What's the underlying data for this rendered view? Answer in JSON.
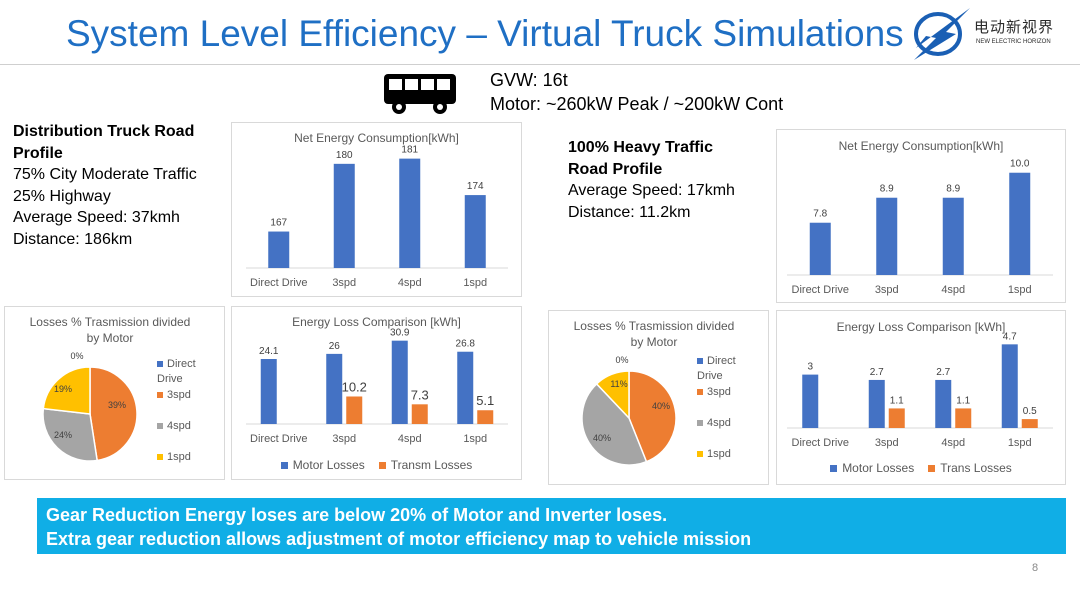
{
  "title": "System Level Efficiency – Virtual Truck Simulations",
  "logo": {
    "cn": "电动新视界",
    "en": "NEW ELECTRIC HORIZON",
    "icon": "lightning-globe-logo"
  },
  "vehicle": {
    "icon": "bus-icon",
    "gvw": "GVW: 16t",
    "motor": "Motor: ~260kW Peak / ~200kW Cont"
  },
  "profile_left": {
    "heading": [
      "Distribution Truck Road",
      "Profile"
    ],
    "lines": [
      "75% City Moderate Traffic",
      "25% Highway",
      "Average Speed: 37kmh",
      "Distance: 186km"
    ]
  },
  "profile_right": {
    "heading": [
      "100% Heavy Traffic",
      "Road Profile"
    ],
    "lines": [
      "Average Speed: 17kmh",
      "Distance: 11.2km"
    ]
  },
  "colors": {
    "blue": "#4472c4",
    "orange": "#ed7d31",
    "gray": "#a5a5a5",
    "yellow": "#ffc000",
    "banner": "#10aee6",
    "title": "#1f6fc4"
  },
  "chart_data": [
    {
      "id": "net-left",
      "type": "bar",
      "title": "Net Energy Consumption[kWh]",
      "categories": [
        "Direct Drive",
        "3spd",
        "4spd",
        "1spd"
      ],
      "series": [
        {
          "values": [
            167,
            180,
            181,
            174
          ],
          "color": "#4472c4"
        }
      ],
      "labels": [
        "167",
        "180",
        "181",
        "174"
      ]
    },
    {
      "id": "net-right",
      "type": "bar",
      "title": "Net Energy Consumption[kWh]",
      "categories": [
        "Direct Drive",
        "3spd",
        "4spd",
        "1spd"
      ],
      "series": [
        {
          "values": [
            7.8,
            8.9,
            8.9,
            10.0
          ],
          "color": "#4472c4"
        }
      ],
      "labels": [
        "7.8",
        "8.9",
        "8.9",
        "10.0"
      ]
    },
    {
      "id": "loss-left",
      "type": "bar",
      "title": "Energy Loss Comparison [kWh]",
      "categories": [
        "Direct Drive",
        "3spd",
        "4spd",
        "1spd"
      ],
      "series": [
        {
          "name": "Motor Losses",
          "values": [
            24.1,
            26,
            30.9,
            26.8
          ],
          "color": "#4472c4"
        },
        {
          "name": "Transm Losses",
          "values": [
            0,
            10.2,
            7.3,
            5.1
          ],
          "color": "#ed7d31"
        }
      ],
      "labels": [
        [
          "24.1",
          "26",
          "30.9",
          "26.8"
        ],
        [
          "",
          "10.2",
          "7.3",
          "5.1"
        ]
      ]
    },
    {
      "id": "loss-right",
      "type": "bar",
      "title": "Energy Loss Comparison [kWh]",
      "categories": [
        "Direct Drive",
        "3spd",
        "4spd",
        "1spd"
      ],
      "series": [
        {
          "name": "Motor Losses",
          "values": [
            3,
            2.7,
            2.7,
            4.7
          ],
          "color": "#4472c4"
        },
        {
          "name": "Trans Losses",
          "values": [
            0,
            1.1,
            1.1,
            0.5
          ],
          "color": "#ed7d31"
        }
      ],
      "labels": [
        [
          "3",
          "2.7",
          "2.7",
          "4.7"
        ],
        [
          "",
          "1.1",
          "1.1",
          "0.5"
        ]
      ]
    },
    {
      "id": "pie-left",
      "type": "pie",
      "title": [
        "Losses % Trasmission divided",
        "by Motor"
      ],
      "categories": [
        "Direct Drive",
        "3spd",
        "4spd",
        "1spd"
      ],
      "values": [
        0,
        39,
        24,
        19
      ],
      "labels": [
        "0%",
        "39%",
        "24%",
        "19%"
      ],
      "colors": [
        "#4472c4",
        "#ed7d31",
        "#a5a5a5",
        "#ffc000"
      ]
    },
    {
      "id": "pie-right",
      "type": "pie",
      "title": [
        "Losses % Trasmission divided",
        "by Motor"
      ],
      "categories": [
        "Direct Drive",
        "3spd",
        "4spd",
        "1spd"
      ],
      "values": [
        0,
        40,
        40,
        11
      ],
      "labels": [
        "0%",
        "40%",
        "40%",
        "11%"
      ],
      "colors": [
        "#4472c4",
        "#ed7d31",
        "#a5a5a5",
        "#ffc000"
      ]
    }
  ],
  "banner": {
    "line1": "Gear Reduction Energy loses are below 20% of Motor and Inverter loses.",
    "line2": "Extra gear reduction allows adjustment of motor efficiency map to vehicle mission"
  },
  "page_number": "8"
}
